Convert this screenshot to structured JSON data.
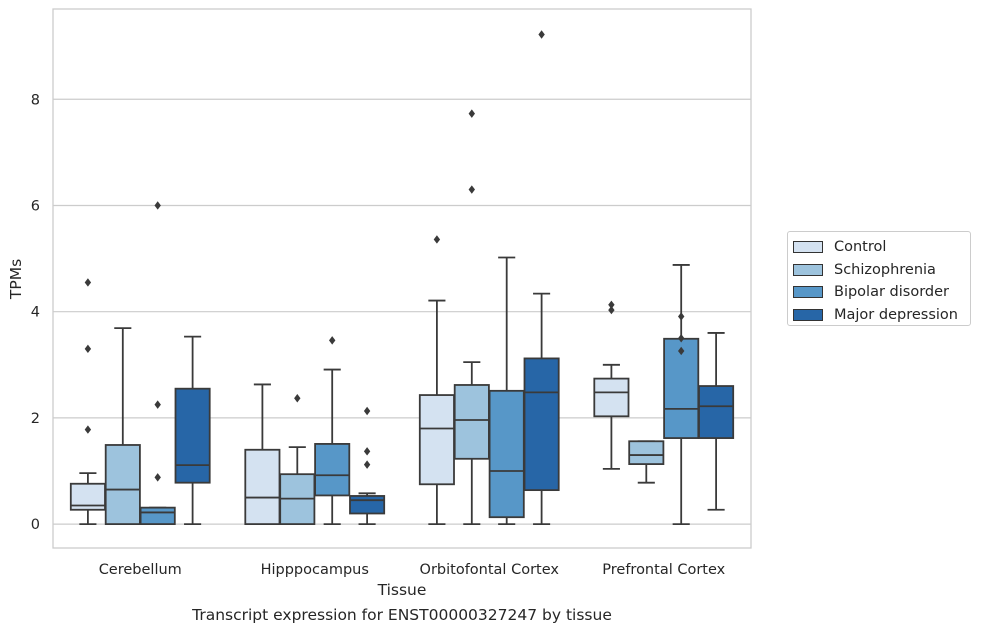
{
  "chart_data": {
    "type": "box",
    "xlabel": "Tissue",
    "ylabel": "TPMs",
    "caption": "Transcript expression for ENST00000327247 by tissue",
    "ylim": [
      -0.45,
      9.7
    ],
    "yticks": [
      "0",
      "2",
      "4",
      "6",
      "8"
    ],
    "grid": "horizontal",
    "legend_position": "right",
    "categories": [
      "Cerebellum",
      "Hipppocampus",
      "Orbitofontal Cortex",
      "Prefrontal Cortex"
    ],
    "series": [
      {
        "name": "Control",
        "color": "#d4e2f1",
        "boxes": [
          {
            "whislo": 0.0,
            "q1": 0.27,
            "med": 0.35,
            "q3": 0.76,
            "whishi": 0.96,
            "fliers": [
              1.78,
              3.3,
              4.55
            ]
          },
          {
            "whislo": 0.0,
            "q1": 0.0,
            "med": 0.5,
            "q3": 1.4,
            "whishi": 2.63,
            "fliers": []
          },
          {
            "whislo": 0.0,
            "q1": 0.75,
            "med": 1.8,
            "q3": 2.43,
            "whishi": 4.21,
            "fliers": [
              5.36
            ]
          },
          {
            "whislo": 1.04,
            "q1": 2.03,
            "med": 2.48,
            "q3": 2.74,
            "whishi": 3.0,
            "fliers": [
              4.03,
              4.13
            ]
          }
        ]
      },
      {
        "name": "Schizophrenia",
        "color": "#9dc3dd",
        "boxes": [
          {
            "whislo": 0.0,
            "q1": 0.0,
            "med": 0.65,
            "q3": 1.49,
            "whishi": 3.69,
            "fliers": []
          },
          {
            "whislo": 0.0,
            "q1": 0.0,
            "med": 0.48,
            "q3": 0.94,
            "whishi": 1.45,
            "fliers": [
              2.37
            ]
          },
          {
            "whislo": 0.0,
            "q1": 1.23,
            "med": 1.96,
            "q3": 2.62,
            "whishi": 3.05,
            "fliers": [
              6.3,
              7.73
            ]
          },
          {
            "whislo": 0.78,
            "q1": 1.13,
            "med": 1.3,
            "q3": 1.56,
            "whishi": 1.56,
            "fliers": []
          }
        ]
      },
      {
        "name": "Bipolar disorder",
        "color": "#5797c8",
        "boxes": [
          {
            "whislo": 0.0,
            "q1": 0.0,
            "med": 0.22,
            "q3": 0.31,
            "whishi": 0.31,
            "fliers": [
              0.88,
              2.25,
              6.0
            ]
          },
          {
            "whislo": 0.0,
            "q1": 0.54,
            "med": 0.92,
            "q3": 1.51,
            "whishi": 2.91,
            "fliers": [
              3.46
            ]
          },
          {
            "whislo": 0.0,
            "q1": 0.13,
            "med": 1.0,
            "q3": 2.51,
            "whishi": 5.02,
            "fliers": []
          },
          {
            "whislo": 0.0,
            "q1": 1.62,
            "med": 2.17,
            "q3": 3.49,
            "whishi": 4.88,
            "fliers": [
              3.26,
              3.5,
              3.91
            ]
          }
        ]
      },
      {
        "name": "Major depression",
        "color": "#2766a7",
        "boxes": [
          {
            "whislo": 0.0,
            "q1": 0.78,
            "med": 1.11,
            "q3": 2.55,
            "whishi": 3.53,
            "fliers": []
          },
          {
            "whislo": 0.0,
            "q1": 0.2,
            "med": 0.45,
            "q3": 0.53,
            "whishi": 0.58,
            "fliers": [
              1.12,
              1.37,
              2.13
            ]
          },
          {
            "whislo": 0.0,
            "q1": 0.64,
            "med": 2.48,
            "q3": 3.12,
            "whishi": 4.34,
            "fliers": [
              9.22
            ]
          },
          {
            "whislo": 0.27,
            "q1": 1.62,
            "med": 2.22,
            "q3": 2.6,
            "whishi": 3.6,
            "fliers": []
          }
        ]
      }
    ]
  }
}
